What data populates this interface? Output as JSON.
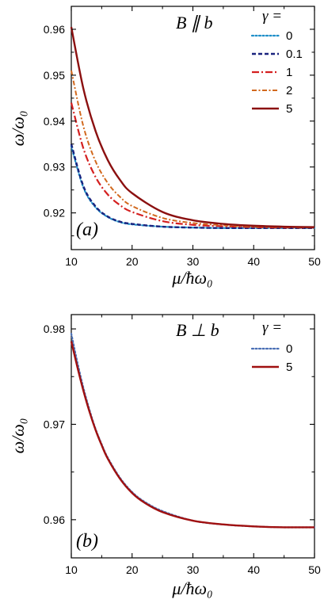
{
  "chart_data": [
    {
      "panel_label": "(a)",
      "type": "line",
      "annotation": "B ∥ b",
      "legend_title": "γ =",
      "legend_placement": "top-right",
      "xlabel": "μ/ħω₀",
      "ylabel": "ω/ω₀",
      "xlim": [
        10,
        50
      ],
      "ylim": [
        0.912,
        0.965
      ],
      "xticks": [
        "10",
        "20",
        "30",
        "40",
        "50"
      ],
      "yticks": [
        "0.92",
        "0.93",
        "0.94",
        "0.95",
        "0.96"
      ],
      "x": [
        10,
        12,
        14,
        16,
        18,
        20,
        25,
        30,
        35,
        40,
        45,
        50
      ],
      "series": [
        {
          "name": "0",
          "color": "#1f8fc9",
          "dash": "dotted",
          "values": [
            0.9345,
            0.9255,
            0.9212,
            0.9191,
            0.918,
            0.9175,
            0.917,
            0.9168,
            0.9167,
            0.9167,
            0.9167,
            0.9167
          ]
        },
        {
          "name": "0.1",
          "color": "#1a237e",
          "dash": "dashed",
          "values": [
            0.935,
            0.9258,
            0.9214,
            0.9192,
            0.9181,
            0.9176,
            0.917,
            0.9168,
            0.9167,
            0.9167,
            0.9167,
            0.9167
          ]
        },
        {
          "name": "1",
          "color": "#d42020",
          "dash": "dashdot",
          "values": [
            0.944,
            0.934,
            0.9278,
            0.924,
            0.9217,
            0.9202,
            0.9182,
            0.9174,
            0.9171,
            0.9169,
            0.9168,
            0.9168
          ]
        },
        {
          "name": "2",
          "color": "#d2691e",
          "dash": "dashdot2",
          "values": [
            0.951,
            0.9388,
            0.9312,
            0.9265,
            0.9235,
            0.9215,
            0.9189,
            0.9178,
            0.9173,
            0.917,
            0.9169,
            0.9168
          ]
        },
        {
          "name": "5",
          "color": "#8b1010",
          "dash": "solid",
          "values": [
            0.9605,
            0.947,
            0.9378,
            0.9315,
            0.9272,
            0.9243,
            0.9202,
            0.9184,
            0.9176,
            0.9172,
            0.917,
            0.9169
          ]
        }
      ]
    },
    {
      "panel_label": "(b)",
      "type": "line",
      "annotation": "B ⊥ b",
      "legend_title": "γ =",
      "legend_placement": "top-right",
      "xlabel": "μ/ħω₀",
      "ylabel": "ω/ω₀",
      "xlim": [
        10,
        50
      ],
      "ylim": [
        0.956,
        0.9815
      ],
      "xticks": [
        "10",
        "20",
        "30",
        "40",
        "50"
      ],
      "yticks": [
        "0.96",
        "0.97",
        "0.98"
      ],
      "x": [
        10,
        11,
        12,
        13,
        14,
        15,
        16,
        18,
        20,
        22,
        25,
        30,
        35,
        40,
        45,
        50
      ],
      "series": [
        {
          "name": "0",
          "color": "#4a6fb5",
          "dash": "dotted",
          "values": [
            0.9795,
            0.9765,
            0.9738,
            0.9715,
            0.9695,
            0.9679,
            0.9665,
            0.9644,
            0.9629,
            0.9619,
            0.9609,
            0.9599,
            0.9595,
            0.9593,
            0.9592,
            0.9592
          ]
        },
        {
          "name": "5",
          "color": "#a01010",
          "dash": "solid",
          "values": [
            0.9787,
            0.976,
            0.9735,
            0.9713,
            0.9694,
            0.9678,
            0.9664,
            0.9643,
            0.9628,
            0.9618,
            0.9608,
            0.9599,
            0.9595,
            0.9593,
            0.9592,
            0.9592
          ]
        }
      ]
    }
  ]
}
